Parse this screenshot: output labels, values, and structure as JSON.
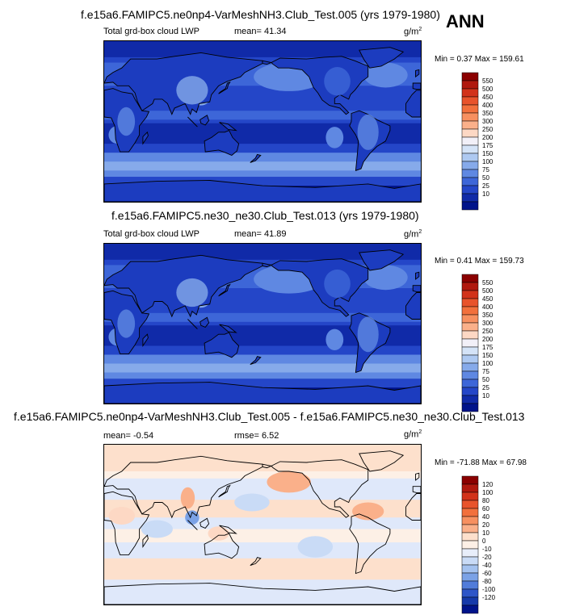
{
  "season": "ANN",
  "units_base": "g/m",
  "units_exp": "2",
  "panels": [
    {
      "title": "f.e15a6.FAMIPC5.ne0np4-VarMeshNH3.Club_Test.005 (yrs 1979-1980)",
      "variable": "Total grd-box cloud LWP",
      "stat1_label": "mean=",
      "stat1_value": "41.34",
      "stat2_label": "",
      "stat2_value": "",
      "min_label": "Min =",
      "min_value": "0.37",
      "max_label": "Max =",
      "max_value": "159.61",
      "colorbar": {
        "labels": [
          "550",
          "500",
          "450",
          "400",
          "350",
          "300",
          "250",
          "200",
          "175",
          "150",
          "100",
          "75",
          "50",
          "25",
          "10"
        ],
        "colors": [
          "#8b0000",
          "#b0180e",
          "#d2321a",
          "#e8532b",
          "#f2703c",
          "#f79060",
          "#fab08a",
          "#fdd8c4",
          "#f2f0f8",
          "#d4e3f7",
          "#aec9f1",
          "#86aaea",
          "#5f88e2",
          "#3d66d8",
          "#2446c8",
          "#102aa8",
          "#00138a"
        ]
      }
    },
    {
      "title": "f.e15a6.FAMIPC5.ne30_ne30.Club_Test.013 (yrs 1979-1980)",
      "variable": "Total grd-box cloud LWP",
      "stat1_label": "mean=",
      "stat1_value": "41.89",
      "stat2_label": "",
      "stat2_value": "",
      "min_label": "Min =",
      "min_value": "0.41",
      "max_label": "Max =",
      "max_value": "159.73",
      "colorbar": {
        "labels": [
          "550",
          "500",
          "450",
          "400",
          "350",
          "300",
          "250",
          "200",
          "175",
          "150",
          "100",
          "75",
          "50",
          "25",
          "10"
        ],
        "colors": [
          "#8b0000",
          "#b0180e",
          "#d2321a",
          "#e8532b",
          "#f2703c",
          "#f79060",
          "#fab08a",
          "#fdd8c4",
          "#f2f0f8",
          "#d4e3f7",
          "#aec9f1",
          "#86aaea",
          "#5f88e2",
          "#3d66d8",
          "#2446c8",
          "#102aa8",
          "#00138a"
        ]
      }
    },
    {
      "title": "f.e15a6.FAMIPC5.ne0np4-VarMeshNH3.Club_Test.005 - f.e15a6.FAMIPC5.ne30_ne30.Club_Test.013",
      "variable": "",
      "stat1_label": "mean=",
      "stat1_value": "-0.54",
      "stat2_label": "rmse=",
      "stat2_value": "6.52",
      "min_label": "Min =",
      "min_value": "-71.88",
      "max_label": "Max =",
      "max_value": "67.98",
      "colorbar": {
        "labels": [
          "120",
          "100",
          "80",
          "60",
          "40",
          "20",
          "10",
          "0",
          "-10",
          "-20",
          "-40",
          "-60",
          "-80",
          "-100",
          "-120"
        ],
        "colors": [
          "#8b0000",
          "#b0180e",
          "#d2321a",
          "#e8532b",
          "#f2703c",
          "#f79060",
          "#fab08a",
          "#fde0cc",
          "#fdf0e6",
          "#e8eefa",
          "#c9dbf6",
          "#a4c2ef",
          "#7ba2e6",
          "#517cda",
          "#2e56c8",
          "#163aaa",
          "#00138a"
        ]
      }
    }
  ]
}
